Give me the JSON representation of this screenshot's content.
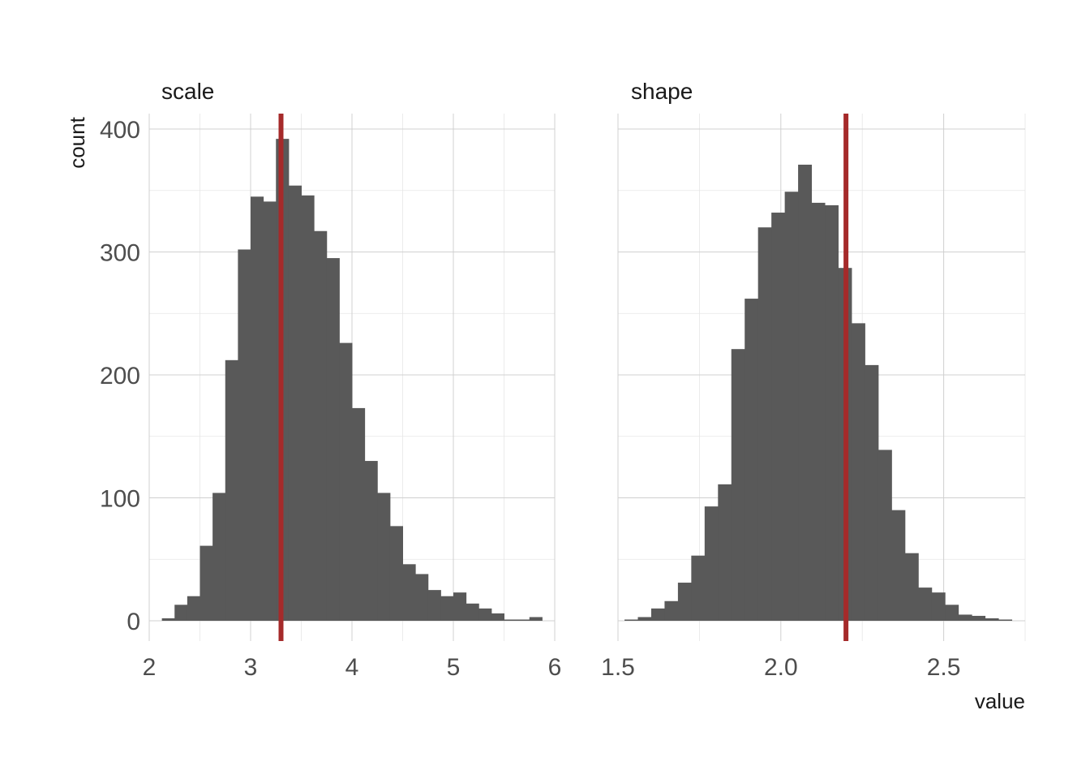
{
  "chart_data": {
    "type": "histogram",
    "xlabel": "value",
    "ylabel": "count",
    "ylim": [
      0,
      400
    ],
    "yticks": [
      0,
      100,
      200,
      300,
      400
    ],
    "grid": true,
    "legend": "none",
    "ref_line_color": "#a52a2a",
    "bar_color": "#595959",
    "panels": [
      {
        "title": "scale",
        "xlim": [
          2,
          6
        ],
        "xticks": [
          2,
          3,
          4,
          5,
          6
        ],
        "xtick_labels": [
          "2",
          "3",
          "4",
          "5",
          "6"
        ],
        "bin_width": 0.125,
        "bins_start": 2.125,
        "counts": [
          2,
          13,
          20,
          61,
          104,
          212,
          302,
          345,
          341,
          392,
          354,
          346,
          317,
          295,
          226,
          173,
          130,
          104,
          77,
          46,
          38,
          25,
          20,
          23,
          14,
          10,
          6,
          1,
          1,
          3
        ],
        "reference_value": 3.3
      },
      {
        "title": "shape",
        "xlim": [
          1.5,
          2.75
        ],
        "xticks": [
          1.5,
          2.0,
          2.5
        ],
        "xtick_labels": [
          "1.5",
          "2.0",
          "2.5"
        ],
        "bin_width": 0.041,
        "bins_start": 1.52,
        "counts": [
          1,
          3,
          10,
          16,
          31,
          53,
          93,
          111,
          221,
          262,
          320,
          332,
          349,
          371,
          340,
          338,
          287,
          242,
          208,
          139,
          90,
          55,
          27,
          23,
          13,
          5,
          4,
          2,
          1
        ],
        "reference_value": 2.2
      }
    ]
  }
}
